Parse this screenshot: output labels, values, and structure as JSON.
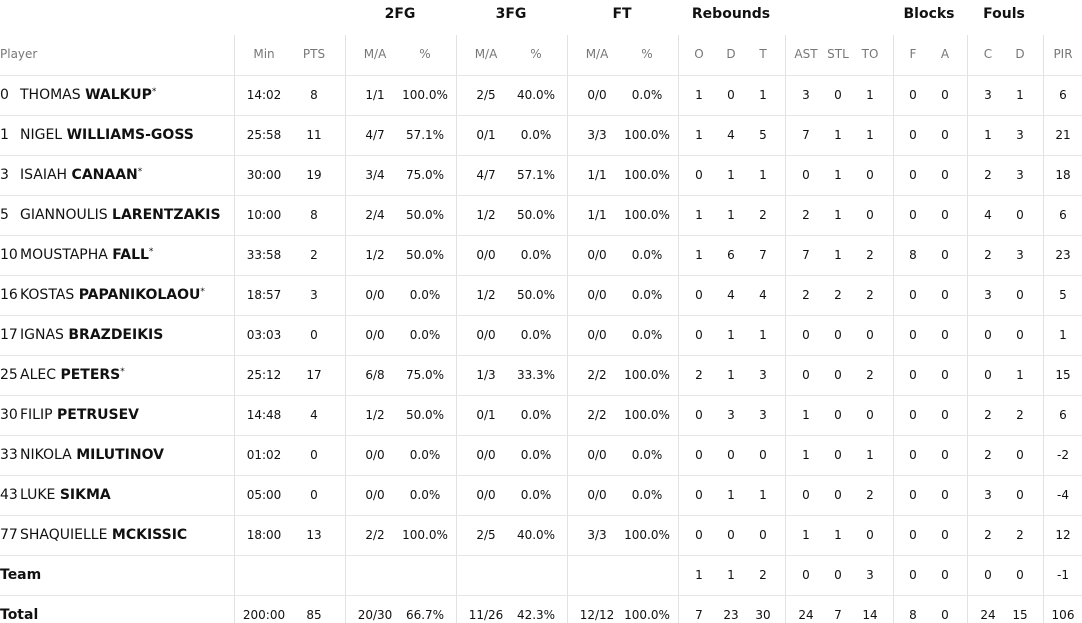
{
  "table": {
    "groups": [
      "2FG",
      "3FG",
      "FT",
      "Rebounds",
      "Blocks",
      "Fouls"
    ],
    "columns": [
      "Player",
      "Min",
      "PTS",
      "M/A",
      "%",
      "M/A",
      "%",
      "M/A",
      "%",
      "O",
      "D",
      "T",
      "AST",
      "STL",
      "TO",
      "F",
      "A",
      "C",
      "D",
      "PIR"
    ],
    "rows": [
      {
        "number": "0",
        "first": "THOMAS",
        "last": "WALKUP",
        "mark": "*",
        "stats": [
          "14:02",
          "8",
          "1/1",
          "100.0%",
          "2/5",
          "40.0%",
          "0/0",
          "0.0%",
          "1",
          "0",
          "1",
          "3",
          "0",
          "1",
          "0",
          "0",
          "3",
          "1",
          "6"
        ]
      },
      {
        "number": "1",
        "first": "NIGEL",
        "last": "WILLIAMS-GOSS",
        "stats": [
          "25:58",
          "11",
          "4/7",
          "57.1%",
          "0/1",
          "0.0%",
          "3/3",
          "100.0%",
          "1",
          "4",
          "5",
          "7",
          "1",
          "1",
          "0",
          "0",
          "1",
          "3",
          "21"
        ]
      },
      {
        "number": "3",
        "first": "ISAIAH",
        "last": "CANAAN",
        "mark": "*",
        "stats": [
          "30:00",
          "19",
          "3/4",
          "75.0%",
          "4/7",
          "57.1%",
          "1/1",
          "100.0%",
          "0",
          "1",
          "1",
          "0",
          "1",
          "0",
          "0",
          "0",
          "2",
          "3",
          "18"
        ]
      },
      {
        "number": "5",
        "first": "GIANNOULIS",
        "last": "LARENTZAKIS",
        "stats": [
          "10:00",
          "8",
          "2/4",
          "50.0%",
          "1/2",
          "50.0%",
          "1/1",
          "100.0%",
          "1",
          "1",
          "2",
          "2",
          "1",
          "0",
          "0",
          "0",
          "4",
          "0",
          "6"
        ]
      },
      {
        "number": "10",
        "first": "MOUSTAPHA",
        "last": "FALL",
        "mark": "*",
        "stats": [
          "33:58",
          "2",
          "1/2",
          "50.0%",
          "0/0",
          "0.0%",
          "0/0",
          "0.0%",
          "1",
          "6",
          "7",
          "7",
          "1",
          "2",
          "8",
          "0",
          "2",
          "3",
          "23"
        ]
      },
      {
        "number": "16",
        "first": "KOSTAS",
        "last": "PAPANIKOLAOU",
        "mark": "*",
        "stats": [
          "18:57",
          "3",
          "0/0",
          "0.0%",
          "1/2",
          "50.0%",
          "0/0",
          "0.0%",
          "0",
          "4",
          "4",
          "2",
          "2",
          "2",
          "0",
          "0",
          "3",
          "0",
          "5"
        ]
      },
      {
        "number": "17",
        "first": "IGNAS",
        "last": "BRAZDEIKIS",
        "stats": [
          "03:03",
          "0",
          "0/0",
          "0.0%",
          "0/0",
          "0.0%",
          "0/0",
          "0.0%",
          "0",
          "1",
          "1",
          "0",
          "0",
          "0",
          "0",
          "0",
          "0",
          "0",
          "1"
        ]
      },
      {
        "number": "25",
        "first": "ALEC",
        "last": "PETERS",
        "mark": "*",
        "stats": [
          "25:12",
          "17",
          "6/8",
          "75.0%",
          "1/3",
          "33.3%",
          "2/2",
          "100.0%",
          "2",
          "1",
          "3",
          "0",
          "0",
          "2",
          "0",
          "0",
          "0",
          "1",
          "15"
        ]
      },
      {
        "number": "30",
        "first": "FILIP",
        "last": "PETRUSEV",
        "stats": [
          "14:48",
          "4",
          "1/2",
          "50.0%",
          "0/1",
          "0.0%",
          "2/2",
          "100.0%",
          "0",
          "3",
          "3",
          "1",
          "0",
          "0",
          "0",
          "0",
          "2",
          "2",
          "6"
        ]
      },
      {
        "number": "33",
        "first": "NIKOLA",
        "last": "MILUTINOV",
        "stats": [
          "01:02",
          "0",
          "0/0",
          "0.0%",
          "0/0",
          "0.0%",
          "0/0",
          "0.0%",
          "0",
          "0",
          "0",
          "1",
          "0",
          "1",
          "0",
          "0",
          "2",
          "0",
          "-2"
        ]
      },
      {
        "number": "43",
        "first": "LUKE",
        "last": "SIKMA",
        "stats": [
          "05:00",
          "0",
          "0/0",
          "0.0%",
          "0/0",
          "0.0%",
          "0/0",
          "0.0%",
          "0",
          "1",
          "1",
          "0",
          "0",
          "2",
          "0",
          "0",
          "3",
          "0",
          "-4"
        ]
      },
      {
        "number": "77",
        "first": "SHAQUIELLE",
        "last": "MCKISSIC",
        "stats": [
          "18:00",
          "13",
          "2/2",
          "100.0%",
          "2/5",
          "40.0%",
          "3/3",
          "100.0%",
          "0",
          "0",
          "0",
          "1",
          "1",
          "0",
          "0",
          "0",
          "2",
          "2",
          "12"
        ]
      }
    ],
    "team": {
      "label": "Team",
      "stats": [
        null,
        null,
        null,
        null,
        null,
        null,
        null,
        null,
        "1",
        "1",
        "2",
        "0",
        "0",
        "3",
        "0",
        "0",
        "0",
        "0",
        "-1"
      ]
    },
    "total": {
      "label": "Total",
      "stats": [
        "200:00",
        "85",
        "20/30",
        "66.7%",
        "11/26",
        "42.3%",
        "12/12",
        "100.0%",
        "7",
        "23",
        "30",
        "24",
        "7",
        "14",
        "8",
        "0",
        "24",
        "15",
        "106"
      ]
    }
  }
}
